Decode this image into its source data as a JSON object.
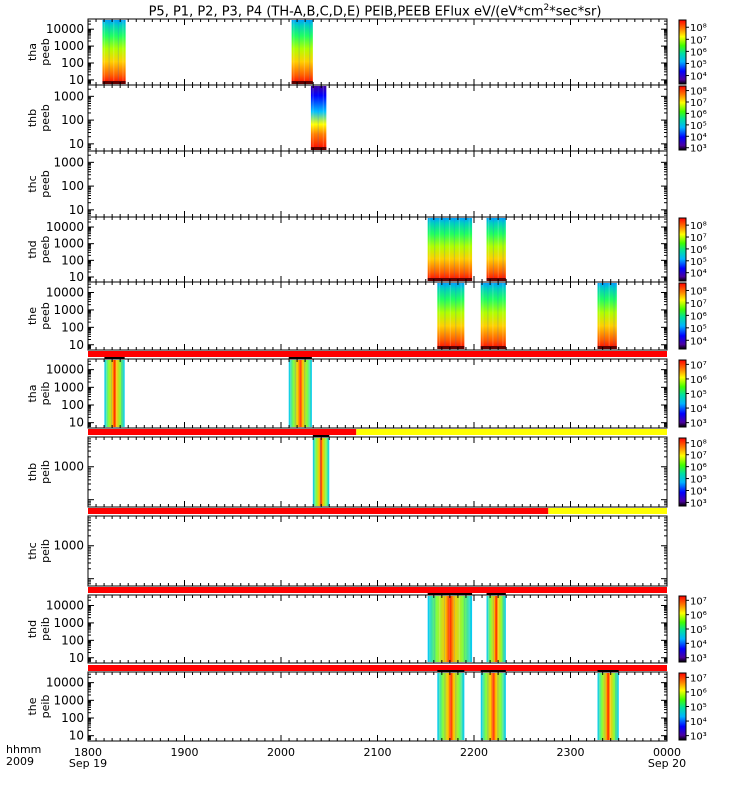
{
  "title": {
    "text_main": "P5, P1, P2, P3, P4 (TH-A,B,C,D,E) PEIB,PEEB EFlux eV/(eV*cm",
    "sup1": "2",
    "text_tail": "*sec*sr)"
  },
  "time_axis": {
    "label_top": "hhmm",
    "label_bottom": "2009",
    "ticks": [
      {
        "label": "1800",
        "sub": "Sep 19",
        "hour": 18
      },
      {
        "label": "1900",
        "sub": "",
        "hour": 19
      },
      {
        "label": "2000",
        "sub": "",
        "hour": 20
      },
      {
        "label": "2100",
        "sub": "",
        "hour": 21
      },
      {
        "label": "2200",
        "sub": "",
        "hour": 22
      },
      {
        "label": "2300",
        "sub": "",
        "hour": 23
      },
      {
        "label": "0000",
        "sub": "Sep 20",
        "hour": 24
      }
    ],
    "range_hours": [
      18,
      24
    ]
  },
  "chart_data": [
    {
      "type": "heatmap",
      "probe": "tha",
      "ylabel1": "tha",
      "ylabel2": "peeb",
      "yticks": [
        "10000",
        "1000",
        "100",
        "10"
      ],
      "yvalues": [
        10000,
        1000,
        100,
        10
      ],
      "ylim": [
        5,
        40000
      ],
      "colorbar": {
        "ticks": [
          "10⁸",
          "10⁷",
          "10⁶",
          "10⁵",
          "10⁴"
        ],
        "exp": [
          8,
          7,
          6,
          5,
          4
        ],
        "range": [
          3.3,
          8.6
        ]
      },
      "blocks": [
        {
          "start": 18.15,
          "end": 18.39
        },
        {
          "start": 20.11,
          "end": 20.33
        }
      ]
    },
    {
      "type": "heatmap",
      "probe": "thb",
      "ylabel1": "thb",
      "ylabel2": "peeb",
      "yticks": [
        "1000",
        "100",
        "10"
      ],
      "yvalues": [
        1000,
        100,
        10
      ],
      "ylim": [
        5,
        3000
      ],
      "colorbar": {
        "ticks": [
          "10⁸",
          "10⁷",
          "10⁶",
          "10⁵",
          "10⁴",
          "10³"
        ],
        "exp": [
          8,
          7,
          6,
          5,
          4,
          3
        ],
        "range": [
          2.8,
          8.4
        ]
      },
      "blocks": [
        {
          "start": 20.31,
          "end": 20.47
        }
      ]
    },
    {
      "type": "heatmap",
      "probe": "thc",
      "ylabel1": "thc",
      "ylabel2": "peeb",
      "yticks": [
        "1000",
        "100",
        "10"
      ],
      "yvalues": [
        1000,
        100,
        10
      ],
      "ylim": [
        5,
        3000
      ],
      "colorbar": null,
      "blocks": []
    },
    {
      "type": "heatmap",
      "probe": "thd",
      "ylabel1": "thd",
      "ylabel2": "peeb",
      "yticks": [
        "10000",
        "1000",
        "100",
        "10"
      ],
      "yvalues": [
        10000,
        1000,
        100,
        10
      ],
      "ylim": [
        5,
        40000
      ],
      "colorbar": {
        "ticks": [
          "10⁸",
          "10⁷",
          "10⁶",
          "10⁵",
          "10⁴"
        ],
        "exp": [
          8,
          7,
          6,
          5,
          4
        ],
        "range": [
          3.3,
          8.6
        ]
      },
      "blocks": [
        {
          "start": 21.52,
          "end": 21.98
        },
        {
          "start": 22.13,
          "end": 22.33
        }
      ]
    },
    {
      "type": "heatmap",
      "probe": "the",
      "ylabel1": "the",
      "ylabel2": "peeb",
      "yticks": [
        "10000",
        "1000",
        "100",
        "10"
      ],
      "yvalues": [
        10000,
        1000,
        100,
        10
      ],
      "ylim": [
        5,
        40000
      ],
      "colorbar": {
        "ticks": [
          "10⁸",
          "10⁷",
          "10⁶",
          "10⁵",
          "10⁴"
        ],
        "exp": [
          8,
          7,
          6,
          5,
          4
        ],
        "range": [
          3.3,
          8.6
        ]
      },
      "blocks": [
        {
          "start": 21.62,
          "end": 21.9
        },
        {
          "start": 22.07,
          "end": 22.33
        },
        {
          "start": 23.28,
          "end": 23.48
        }
      ]
    },
    {
      "type": "heatmap",
      "probe": "tha",
      "ylabel1": "tha",
      "ylabel2": "peib",
      "yticks": [
        "10000",
        "1000",
        "100",
        "10"
      ],
      "yvalues": [
        10000,
        1000,
        100,
        10
      ],
      "ylim": [
        5,
        40000
      ],
      "colorbar": {
        "ticks": [
          "10⁷",
          "10⁶",
          "10⁵",
          "10⁴",
          "10³"
        ],
        "exp": [
          7,
          6,
          5,
          4,
          3
        ],
        "range": [
          2.7,
          7.3
        ]
      },
      "status_bar": [
        {
          "start": 18,
          "end": 24,
          "color": "#ff0000"
        }
      ],
      "blocks": [
        {
          "start": 18.17,
          "end": 18.38
        },
        {
          "start": 20.08,
          "end": 20.32
        }
      ]
    },
    {
      "type": "heatmap",
      "probe": "thb",
      "ylabel1": "thb",
      "ylabel2": "peib",
      "yticks": [
        "1000"
      ],
      "yvalues": [
        1000
      ],
      "ylim": [
        60,
        8000
      ],
      "colorbar": {
        "ticks": [
          "10⁸",
          "10⁷",
          "10⁶",
          "10⁵",
          "10⁴",
          "10³"
        ],
        "exp": [
          8,
          7,
          6,
          5,
          4,
          3
        ],
        "range": [
          2.7,
          8.4
        ]
      },
      "status_bar": [
        {
          "start": 18,
          "end": 20.78,
          "color": "#ff0000"
        },
        {
          "start": 20.78,
          "end": 24,
          "color": "#ffff00"
        }
      ],
      "blocks": [
        {
          "start": 20.33,
          "end": 20.5
        }
      ]
    },
    {
      "type": "heatmap",
      "probe": "thc",
      "ylabel1": "thc",
      "ylabel2": "peib",
      "yticks": [
        "1000"
      ],
      "yvalues": [
        1000
      ],
      "ylim": [
        60,
        8000
      ],
      "colorbar": null,
      "status_bar": [
        {
          "start": 18,
          "end": 22.77,
          "color": "#ff0000"
        },
        {
          "start": 22.77,
          "end": 24,
          "color": "#ffff00"
        }
      ],
      "blocks": []
    },
    {
      "type": "heatmap",
      "probe": "thd",
      "ylabel1": "thd",
      "ylabel2": "peib",
      "yticks": [
        "10000",
        "1000",
        "100",
        "10"
      ],
      "yvalues": [
        10000,
        1000,
        100,
        10
      ],
      "ylim": [
        5,
        40000
      ],
      "colorbar": {
        "ticks": [
          "10⁷",
          "10⁶",
          "10⁵",
          "10⁴",
          "10³"
        ],
        "exp": [
          7,
          6,
          5,
          4,
          3
        ],
        "range": [
          2.7,
          7.3
        ]
      },
      "status_bar": [
        {
          "start": 18,
          "end": 24,
          "color": "#ff0000"
        }
      ],
      "blocks": [
        {
          "start": 21.52,
          "end": 21.98
        },
        {
          "start": 22.13,
          "end": 22.33
        }
      ]
    },
    {
      "type": "heatmap",
      "probe": "the",
      "ylabel1": "the",
      "ylabel2": "peib",
      "yticks": [
        "10000",
        "1000",
        "100",
        "10"
      ],
      "yvalues": [
        10000,
        1000,
        100,
        10
      ],
      "ylim": [
        5,
        40000
      ],
      "colorbar": {
        "ticks": [
          "10⁷",
          "10⁶",
          "10⁵",
          "10⁴",
          "10³"
        ],
        "exp": [
          7,
          6,
          5,
          4,
          3
        ],
        "range": [
          2.7,
          7.3
        ]
      },
      "status_bar": [
        {
          "start": 18,
          "end": 24,
          "color": "#ff0000"
        }
      ],
      "blocks": [
        {
          "start": 21.62,
          "end": 21.9
        },
        {
          "start": 22.07,
          "end": 22.33
        },
        {
          "start": 23.28,
          "end": 23.5
        }
      ]
    }
  ]
}
